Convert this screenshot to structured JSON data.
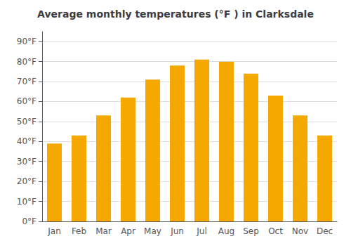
{
  "chart_data": {
    "type": "bar",
    "title": "Average monthly temperatures (°F ) in Clarksdale",
    "categories": [
      "Jan",
      "Feb",
      "Mar",
      "Apr",
      "May",
      "Jun",
      "Jul",
      "Aug",
      "Sep",
      "Oct",
      "Nov",
      "Dec"
    ],
    "values": [
      39,
      43,
      53,
      62,
      71,
      78,
      81,
      80,
      74,
      63,
      53,
      43
    ],
    "color": "#F5A800",
    "ylim": [
      0,
      95
    ],
    "yticks": [
      {
        "value": 0,
        "label": "0°F"
      },
      {
        "value": 10,
        "label": "10°F"
      },
      {
        "value": 20,
        "label": "20°F"
      },
      {
        "value": 30,
        "label": "30°F"
      },
      {
        "value": 40,
        "label": "40°F"
      },
      {
        "value": 50,
        "label": "50°F"
      },
      {
        "value": 60,
        "label": "60°F"
      },
      {
        "value": 70,
        "label": "70°F"
      },
      {
        "value": 80,
        "label": "80°F"
      },
      {
        "value": 90,
        "label": "90°F"
      }
    ],
    "grid": true
  }
}
